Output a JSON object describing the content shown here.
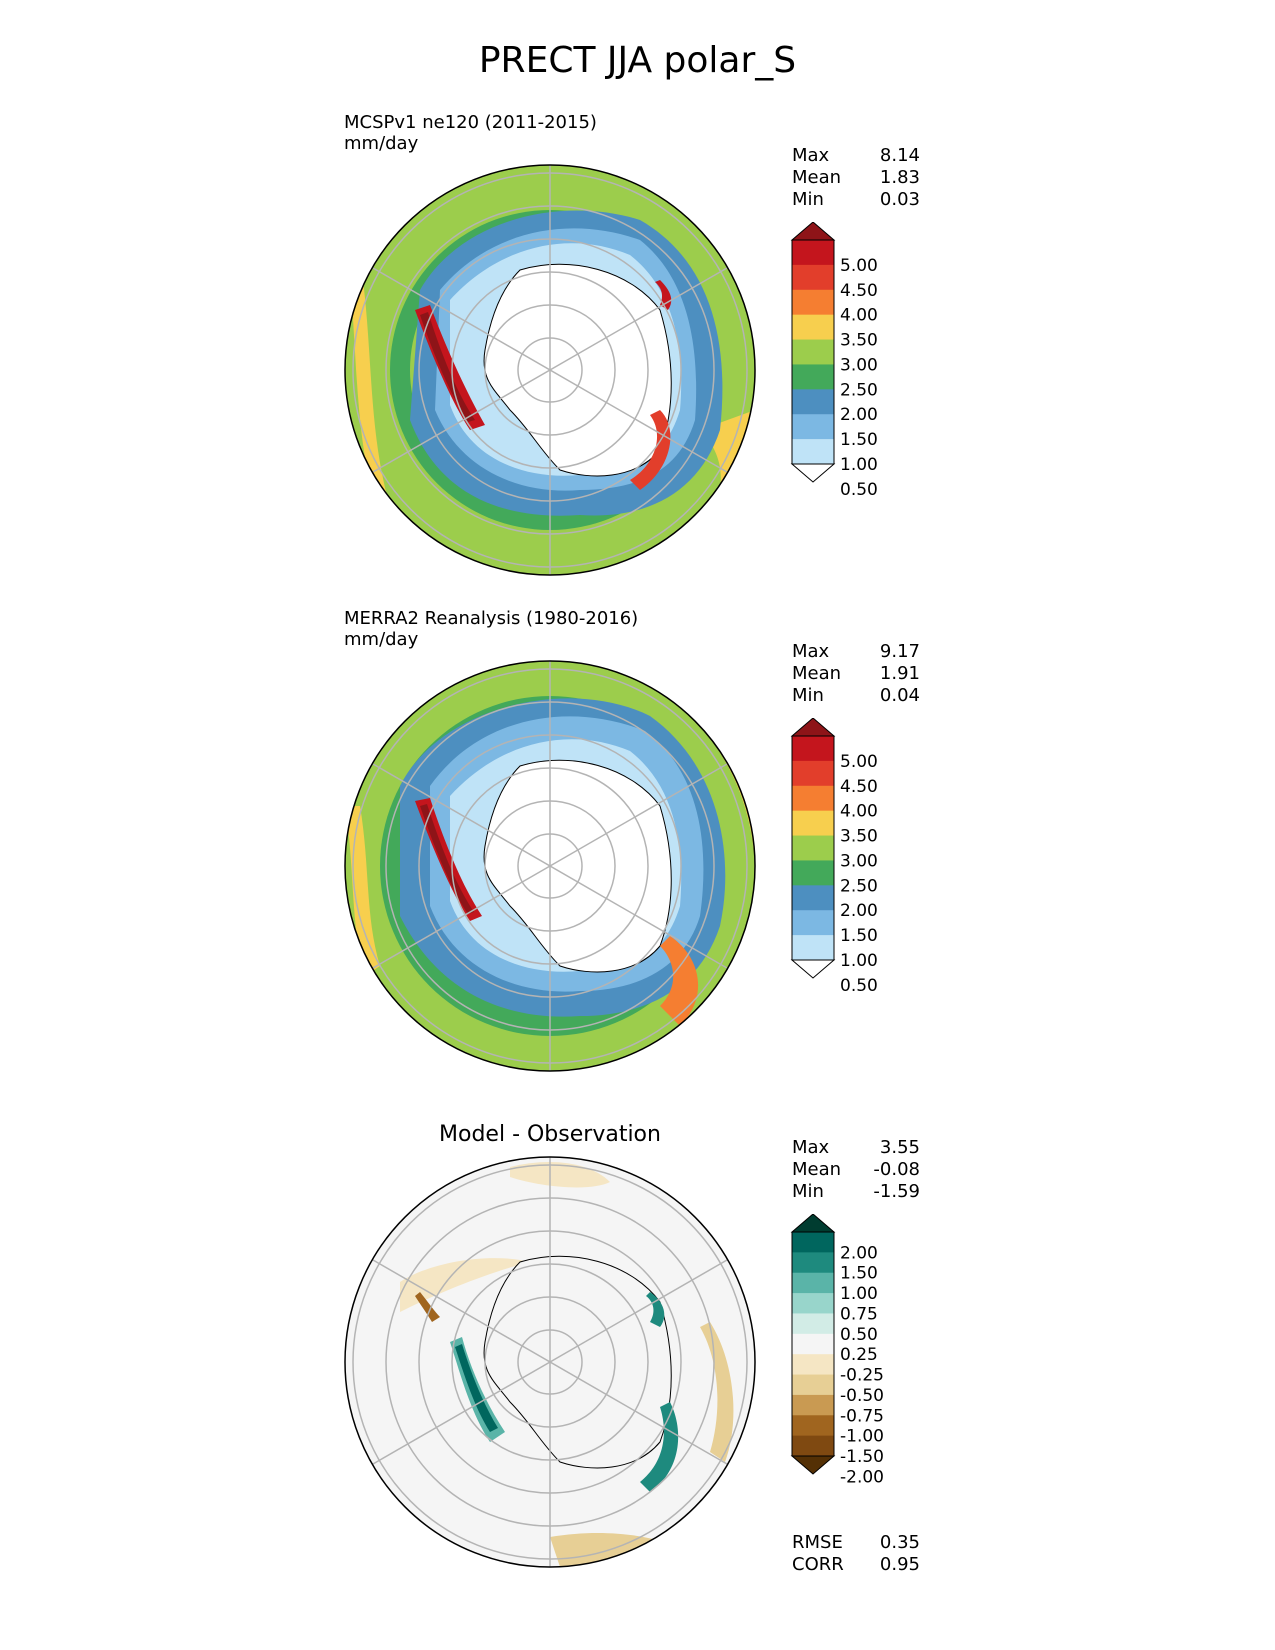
{
  "title": "PRECT JJA polar_S",
  "panels": [
    {
      "title_line1": "MCSPv1 ne120 (2011-2015)",
      "title_line2": "mm/day",
      "stats": [
        {
          "label": "Max",
          "value": "8.14"
        },
        {
          "label": "Mean",
          "value": "1.83"
        },
        {
          "label": "Min",
          "value": "0.03"
        }
      ]
    },
    {
      "title_line1": "MERRA2 Reanalysis (1980-2016)",
      "title_line2": "mm/day",
      "stats": [
        {
          "label": "Max",
          "value": "9.17"
        },
        {
          "label": "Mean",
          "value": "1.91"
        },
        {
          "label": "Min",
          "value": "0.04"
        }
      ]
    },
    {
      "title_center": "Model - Observation",
      "stats": [
        {
          "label": "Max",
          "value": "3.55"
        },
        {
          "label": "Mean",
          "value": "-0.08"
        },
        {
          "label": "Min",
          "value": "-1.59"
        }
      ],
      "metrics": [
        {
          "label": "RMSE",
          "value": "0.35"
        },
        {
          "label": "CORR",
          "value": "0.95"
        }
      ]
    }
  ],
  "colorbars": {
    "precip": {
      "ticks": [
        "5.00",
        "4.50",
        "4.00",
        "3.50",
        "3.00",
        "2.50",
        "2.00",
        "1.50",
        "1.00",
        "0.50"
      ],
      "colors": [
        "#8e1418",
        "#c4151d",
        "#e23e2b",
        "#f57e31",
        "#f7cf4e",
        "#9ccd4c",
        "#43a95a",
        "#4d8fc0",
        "#7cb8e3",
        "#bfe3f7",
        "#ffffff"
      ]
    },
    "diff": {
      "ticks": [
        "2.00",
        "1.50",
        "1.00",
        "0.75",
        "0.50",
        "0.25",
        "-0.25",
        "-0.50",
        "-0.75",
        "-1.00",
        "-1.50",
        "-2.00"
      ],
      "colors": [
        "#003c30",
        "#00665e",
        "#1e8a7e",
        "#5ab4a8",
        "#98d5cb",
        "#d2ece6",
        "#f5f5f5",
        "#f5e6c4",
        "#e7cf95",
        "#c99a52",
        "#a0651f",
        "#7f4911",
        "#543005"
      ]
    }
  }
}
